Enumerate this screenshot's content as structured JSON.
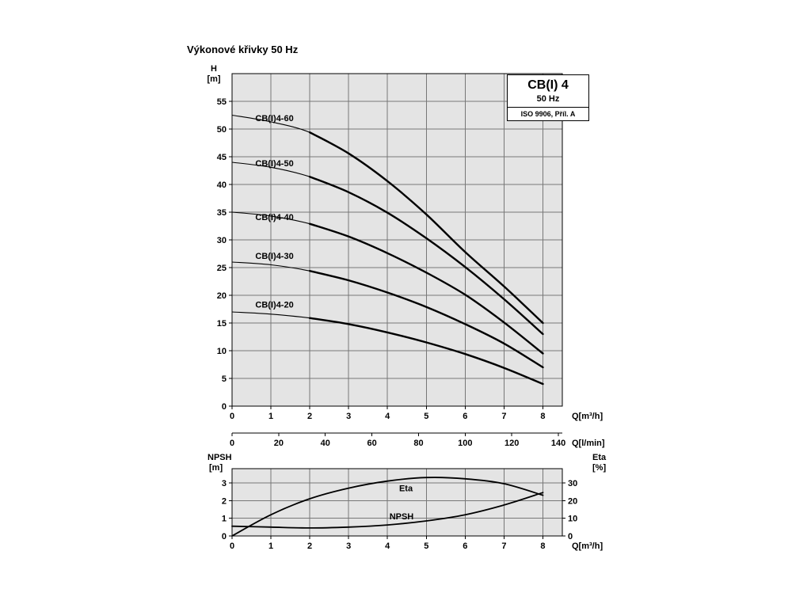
{
  "page": {
    "title": "Výkonové křivky 50 Hz"
  },
  "info_box": {
    "model": "CB(I) 4",
    "frequency": "50 Hz",
    "standard": "ISO 9906, Příl. A"
  },
  "colors": {
    "plot_bg": "#e4e4e4",
    "grid": "#777777",
    "curve": "#000000",
    "border": "#000000"
  },
  "chart_data": [
    {
      "id": "hq-curves",
      "type": "line",
      "title": "CB(I) 4 performance curves 50 Hz",
      "xlabel": "Q[m³/h]",
      "x2label": "Q[l/min]",
      "ylabel_line1": "H",
      "ylabel_line2": "[m]",
      "xlim": [
        0,
        8.5
      ],
      "ylim": [
        0,
        60
      ],
      "xticks": [
        0,
        1,
        2,
        3,
        4,
        5,
        6,
        7,
        8
      ],
      "yticks": [
        0,
        5,
        10,
        15,
        20,
        25,
        30,
        35,
        40,
        45,
        50,
        55
      ],
      "x2ticks": [
        0,
        20,
        40,
        60,
        80,
        100,
        120,
        140
      ],
      "x2_per_x": 16.6667,
      "grid": true,
      "legend_position": "on-curve",
      "series": [
        {
          "name": "CB(I)4-60",
          "thin_until": 2,
          "x": [
            0,
            1,
            2,
            3,
            4,
            5,
            6,
            7,
            8
          ],
          "y": [
            52.5,
            51.3,
            49.4,
            45.6,
            40.6,
            34.6,
            27.8,
            21.6,
            15
          ],
          "label": {
            "x": 0.6,
            "y": 51.4
          }
        },
        {
          "name": "CB(I)4-50",
          "thin_until": 2,
          "x": [
            0,
            1,
            2,
            3,
            4,
            5,
            6,
            7,
            8
          ],
          "y": [
            44,
            43.1,
            41.4,
            38.6,
            34.9,
            30.3,
            25.1,
            19.3,
            13
          ],
          "label": {
            "x": 0.6,
            "y": 43.3
          }
        },
        {
          "name": "CB(I)4-40",
          "thin_until": 2,
          "x": [
            0,
            1,
            2,
            3,
            4,
            5,
            6,
            7,
            8
          ],
          "y": [
            35,
            34.3,
            32.9,
            30.6,
            27.6,
            24.1,
            20.1,
            15.1,
            9.5
          ],
          "label": {
            "x": 0.6,
            "y": 33.6
          }
        },
        {
          "name": "CB(I)4-30",
          "thin_until": 2,
          "x": [
            0,
            1,
            2,
            3,
            4,
            5,
            6,
            7,
            8
          ],
          "y": [
            26,
            25.5,
            24.4,
            22.7,
            20.5,
            17.9,
            14.8,
            11.3,
            7
          ],
          "label": {
            "x": 0.6,
            "y": 26.6
          }
        },
        {
          "name": "CB(I)4-20",
          "thin_until": 2,
          "x": [
            0,
            1,
            2,
            3,
            4,
            5,
            6,
            7,
            8
          ],
          "y": [
            17,
            16.6,
            15.9,
            14.8,
            13.3,
            11.5,
            9.4,
            6.9,
            4
          ],
          "label": {
            "x": 0.6,
            "y": 17.8
          }
        }
      ]
    },
    {
      "id": "npsh-eta",
      "type": "line",
      "title": "NPSH and efficiency curves",
      "xlabel": "Q[m³/h]",
      "ylabel_left_line1": "NPSH",
      "ylabel_left_line2": "[m]",
      "ylabel_right_line1": "Eta",
      "ylabel_right_line2": "[%]",
      "xlim": [
        0,
        8.5
      ],
      "ylim_left": [
        0,
        3.8
      ],
      "ylim_right": [
        0,
        38
      ],
      "xticks": [
        0,
        1,
        2,
        3,
        4,
        5,
        6,
        7,
        8
      ],
      "yticks_left": [
        0,
        1,
        2,
        3
      ],
      "yticks_right": [
        0,
        10,
        20,
        30
      ],
      "grid": true,
      "series": [
        {
          "name": "Eta",
          "axis": "right",
          "x": [
            0,
            1,
            2,
            3,
            4,
            5,
            6,
            7,
            8
          ],
          "y": [
            0,
            12,
            21,
            27,
            31,
            33,
            32.3,
            29.5,
            23
          ],
          "label": {
            "x": 4.3,
            "y_left": 2.52
          }
        },
        {
          "name": "NPSH",
          "axis": "left",
          "x": [
            0,
            1,
            2,
            3,
            4,
            5,
            6,
            7,
            8
          ],
          "y": [
            0.55,
            0.5,
            0.45,
            0.5,
            0.62,
            0.85,
            1.2,
            1.75,
            2.45
          ],
          "label": {
            "x": 4.05,
            "y_left": 0.95
          }
        }
      ]
    }
  ]
}
